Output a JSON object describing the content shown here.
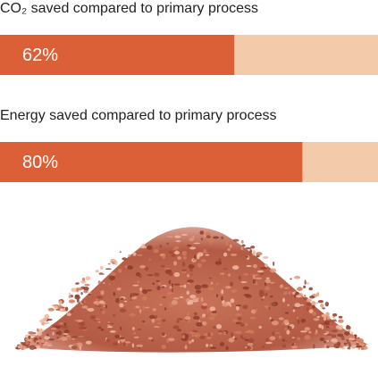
{
  "chart_data": {
    "type": "progress",
    "categories": [
      "CO₂ saved compared to primary process",
      "Energy saved compared to primary process"
    ],
    "values": [
      62,
      80
    ],
    "value_labels": [
      "62%",
      "80%"
    ],
    "xlim": [
      0,
      100
    ],
    "color": "#dc6037",
    "track_color": "#f3cbab"
  }
}
